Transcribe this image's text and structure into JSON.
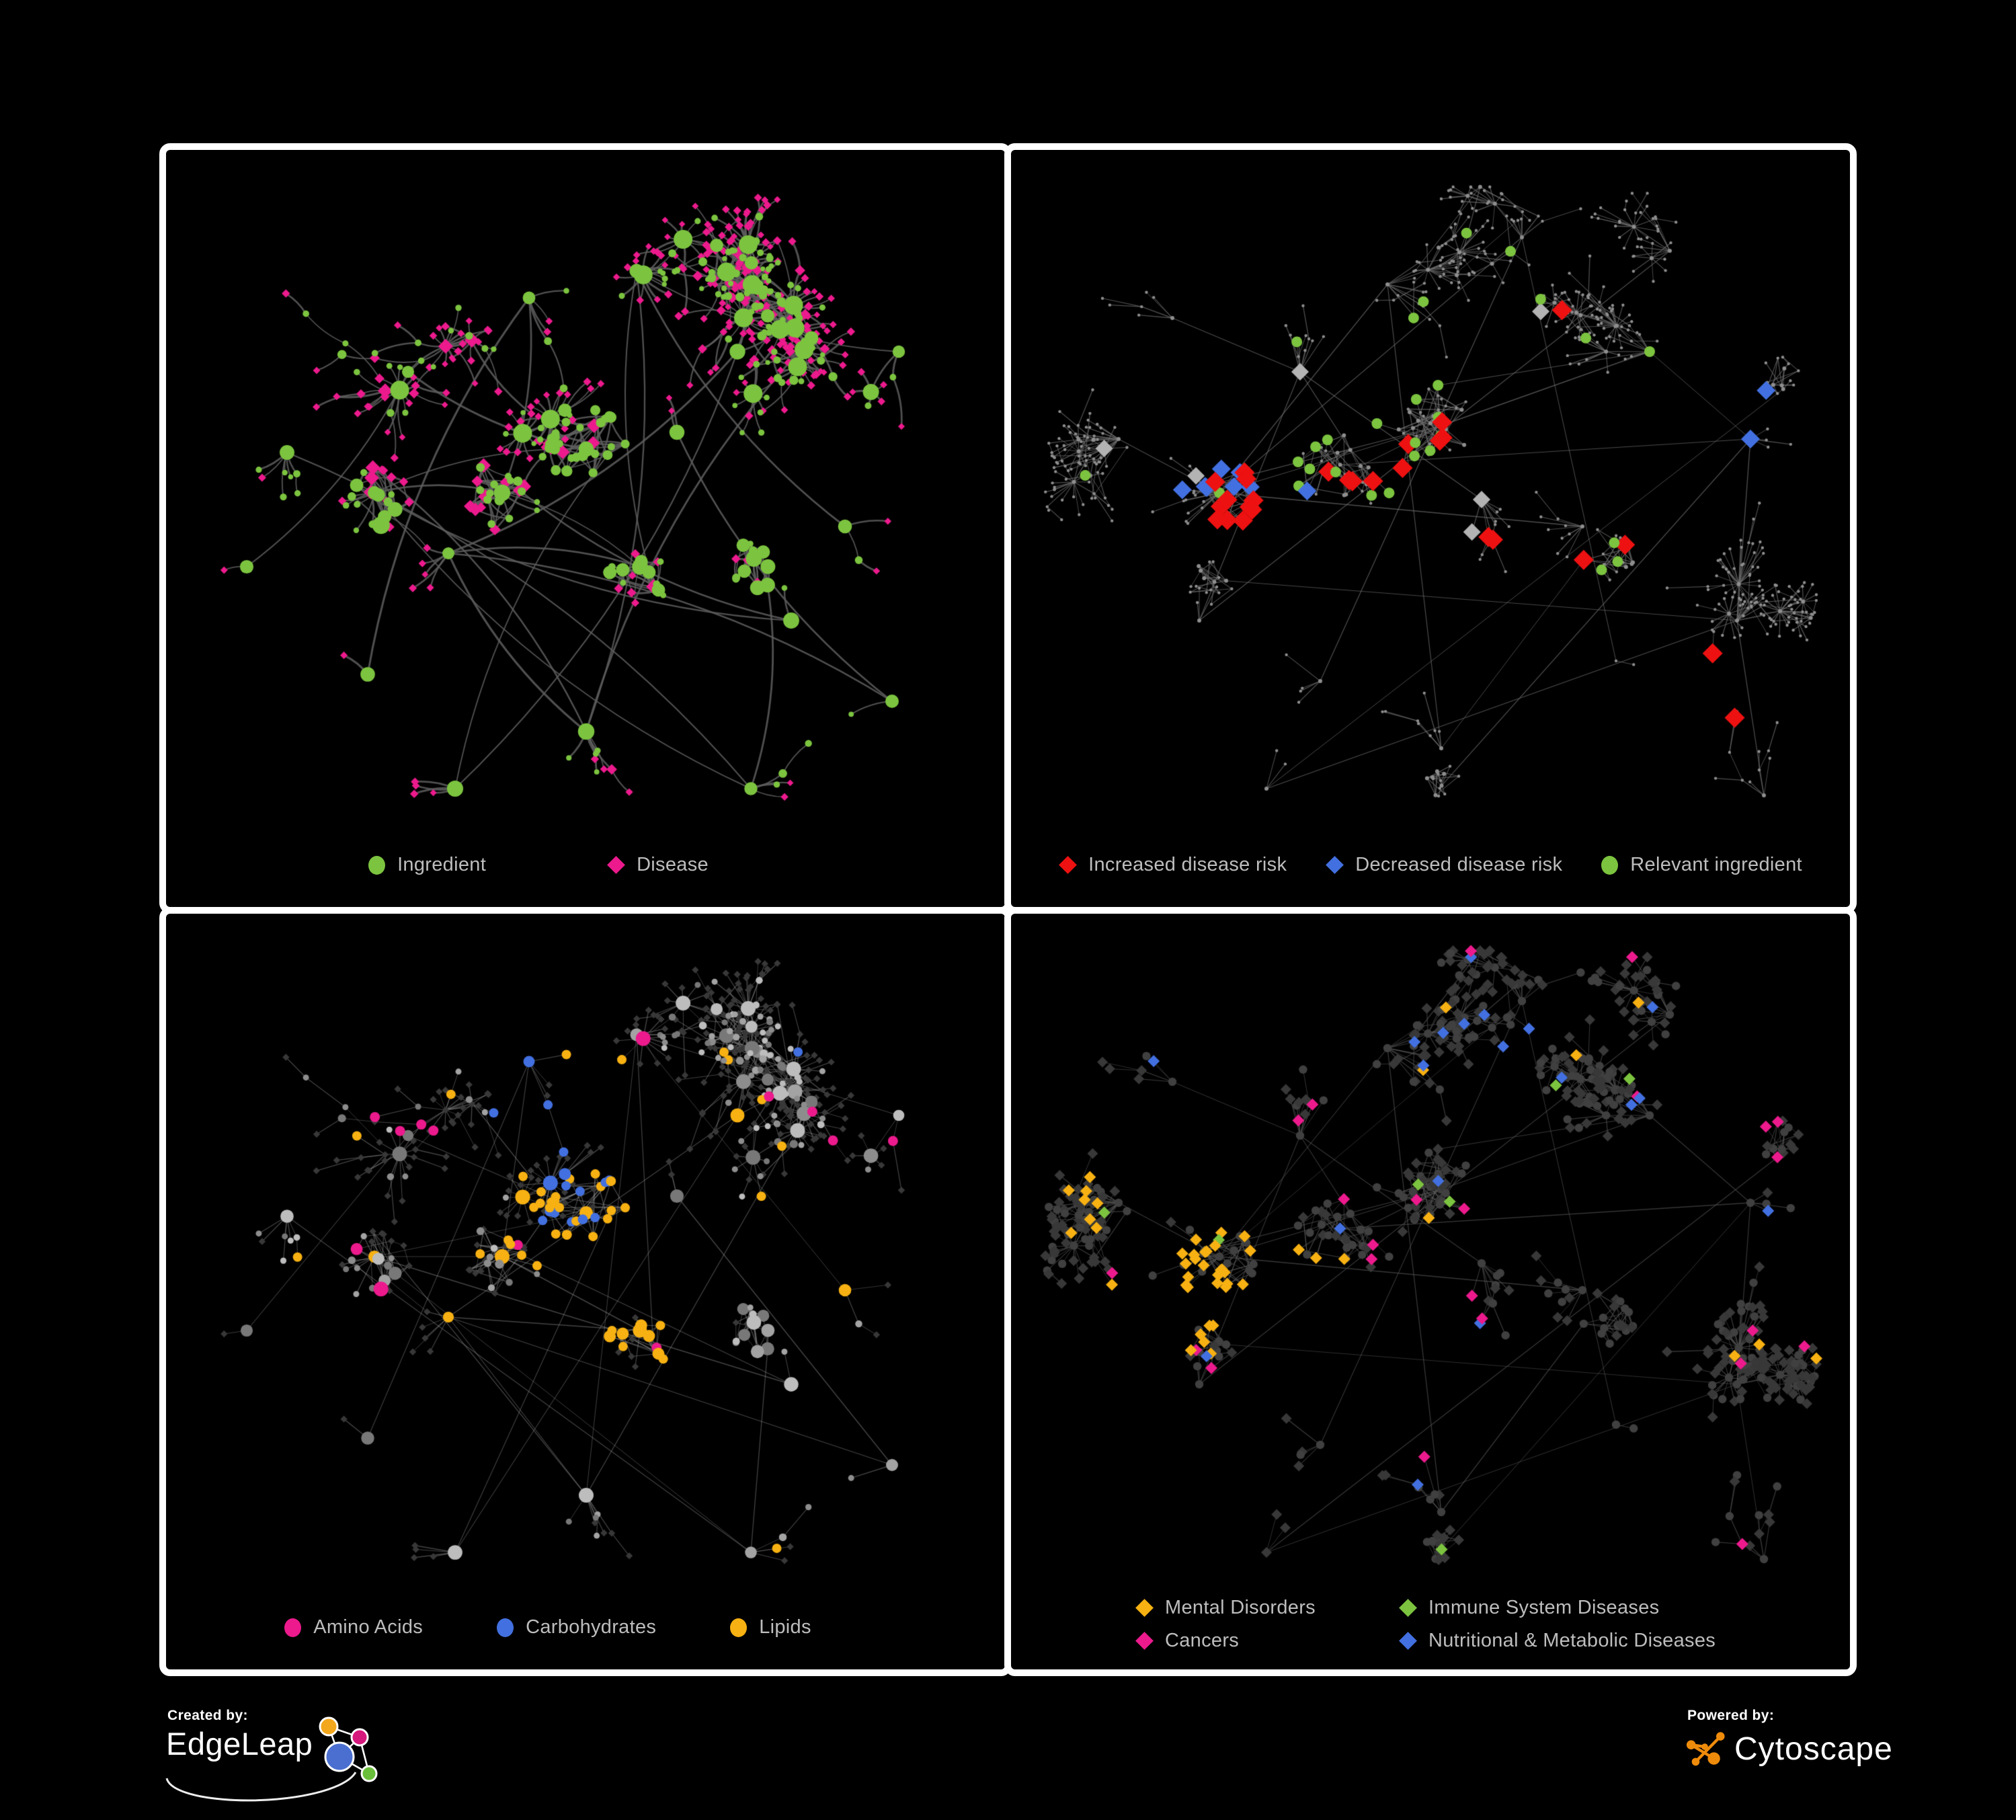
{
  "figure": {
    "created_by_label": "Created by:",
    "created_by_name": "EdgeLeap",
    "powered_by_label": "Powered by:",
    "powered_by_name": "Cytoscape"
  },
  "colors": {
    "background": "#000000",
    "panel_border": "#ffffff",
    "legend_text": "#bdbdbd",
    "green": "#7cc43f",
    "magenta": "#ec1a8d",
    "red": "#ee1111",
    "blue": "#4270e0",
    "orange": "#f7b112",
    "grey_diamond": "#b3b3b3",
    "dark_diamond": "#383838",
    "dark_circle": "#404040",
    "edge_dark": "#5e5e5e",
    "edge_light": "#9f9f9f",
    "edge_mid": "#6d6d6d",
    "tiny_node": "#8e8e8e",
    "edgeleap_orange": "#f2a71c",
    "edgeleap_pink": "#d6177c",
    "edgeleap_blue": "#4a6fd0",
    "edgeleap_green": "#6abf3a",
    "cytoscape_orange": "#ef8b0b"
  },
  "panels": [
    {
      "id": "ingredient-disease",
      "legend": [
        {
          "label": "Ingredient",
          "shape": "circle",
          "color": "#7cc43f"
        },
        {
          "label": "Disease",
          "shape": "diamond",
          "color": "#ec1a8d"
        }
      ]
    },
    {
      "id": "disease-risk",
      "legend": [
        {
          "label": "Increased disease risk",
          "shape": "diamond",
          "color": "#ee1111"
        },
        {
          "label": "Decreased disease risk",
          "shape": "diamond",
          "color": "#4270e0"
        },
        {
          "label": "Relevant ingredient",
          "shape": "circle",
          "color": "#7cc43f"
        }
      ]
    },
    {
      "id": "nutrient-classes",
      "legend": [
        {
          "label": "Amino Acids",
          "shape": "circle",
          "color": "#ec1a8d"
        },
        {
          "label": "Carbohydrates",
          "shape": "circle",
          "color": "#4270e0"
        },
        {
          "label": "Lipids",
          "shape": "circle",
          "color": "#f7b112"
        }
      ]
    },
    {
      "id": "disease-categories",
      "legend_rows": [
        [
          {
            "label": "Mental Disorders",
            "shape": "diamond",
            "color": "#f7b112"
          },
          {
            "label": "Immune System Diseases",
            "shape": "diamond",
            "color": "#7cc43f"
          }
        ],
        [
          {
            "label": "Cancers",
            "shape": "diamond",
            "color": "#ec1a8d"
          },
          {
            "label": "Nutritional & Metabolic Diseases",
            "shape": "diamond",
            "color": "#4270e0"
          }
        ]
      ]
    }
  ]
}
